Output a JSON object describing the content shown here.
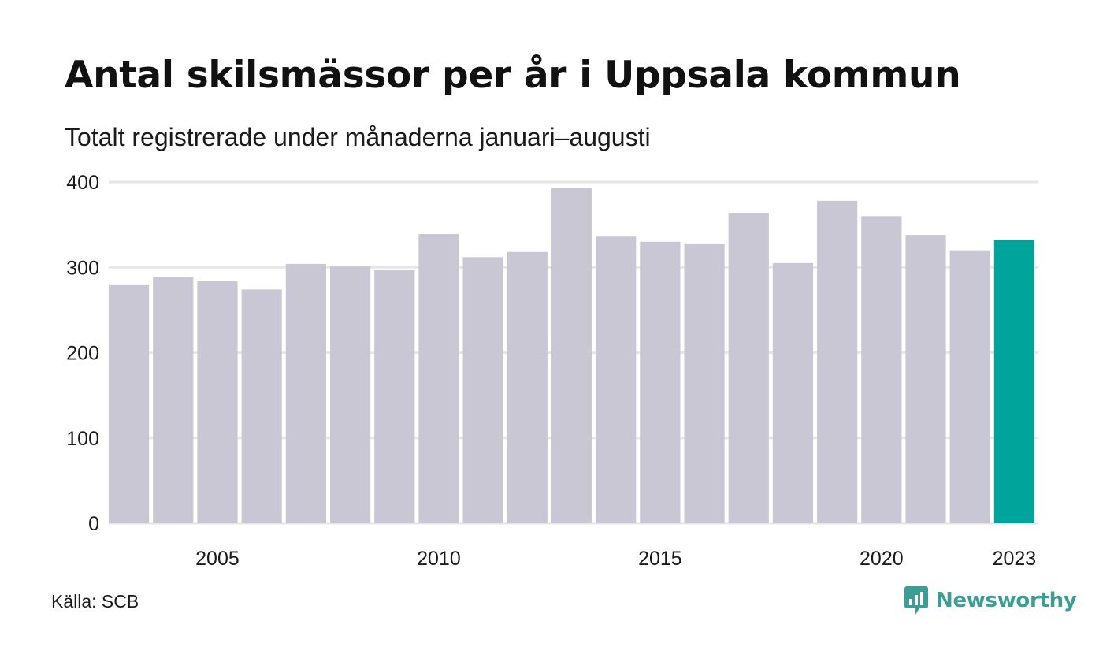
{
  "title": "Antal skilsmässor per år i Uppsala kommun",
  "subtitle": "Totalt registrerade under månaderna januari–augusti",
  "source": "Källa: SCB",
  "brand": {
    "name": "Newsworthy",
    "icon": "newsworthy-logo-icon",
    "color": "#3a9e94"
  },
  "colors": {
    "bar": "#c8c7d3",
    "highlight": "#00a49a",
    "grid": "#e6e6ea"
  },
  "chart_data": {
    "type": "bar",
    "title": "Antal skilsmässor per år i Uppsala kommun",
    "subtitle": "Totalt registrerade under månaderna januari–augusti",
    "xlabel": "",
    "ylabel": "",
    "categories": [
      2003,
      2004,
      2005,
      2006,
      2007,
      2008,
      2009,
      2010,
      2011,
      2012,
      2013,
      2014,
      2015,
      2016,
      2017,
      2018,
      2019,
      2020,
      2021,
      2022,
      2023
    ],
    "values": [
      280,
      289,
      284,
      274,
      304,
      301,
      297,
      339,
      312,
      318,
      393,
      336,
      330,
      328,
      364,
      305,
      378,
      360,
      338,
      320,
      332
    ],
    "highlight_category": 2023,
    "x_tick_labels": [
      "2005",
      "2010",
      "2015",
      "2020",
      "2023"
    ],
    "y_ticks": [
      0,
      100,
      200,
      300,
      400
    ],
    "ylim": [
      0,
      400
    ],
    "grid": true,
    "legend": "none"
  }
}
